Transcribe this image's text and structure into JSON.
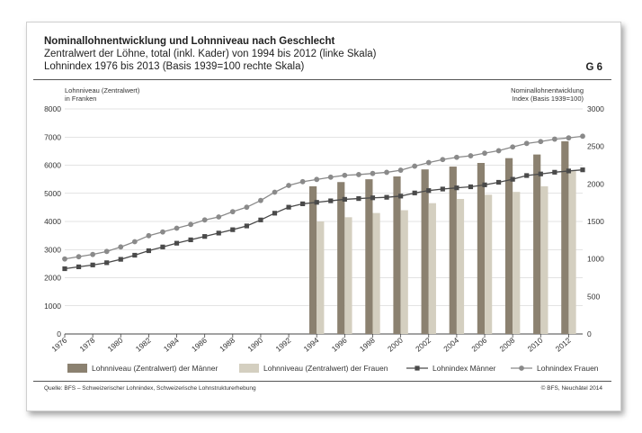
{
  "header": {
    "title": "Nominallohnentwicklung und Lohnniveau nach Geschlecht",
    "subtitle1": "Zentralwert der Löhne, total (inkl. Kader) von 1994 bis 2012 (linke Skala)",
    "subtitle2": "Lohnindex 1976 bis 2013 (Basis 1939=100 rechte Skala)",
    "code": "G 6"
  },
  "footer": {
    "source": "Quelle: BFS – Schweizerischer Lohnindex, Schweizerische Lohnstrukturerhebung",
    "copyright": "© BFS, Neuchâtel 2014"
  },
  "chart_data": {
    "type": "bar",
    "ylabel_left": "Lohnniveau (Zentralwert)",
    "ylabel_left2": "in Franken",
    "ylabel_right": "Nominallohnentwicklung",
    "ylabel_right2": "Index (Basis 1939=100)",
    "ylim_left": [
      0,
      8000
    ],
    "ylim_right": [
      0,
      3000
    ],
    "yticks_left": [
      "0",
      "1000",
      "2000",
      "3000",
      "4000",
      "5000",
      "6000",
      "7000",
      "8000"
    ],
    "yticks_right": [
      "0",
      "500",
      "1000",
      "1500",
      "2000",
      "2500",
      "3000"
    ],
    "x_range": [
      1976,
      2013
    ],
    "xticks": [
      "1976",
      "1978",
      "1980",
      "1982",
      "1984",
      "1986",
      "1988",
      "1990",
      "1992",
      "1994",
      "1996",
      "1998",
      "2000",
      "2002",
      "2004",
      "2006",
      "2008",
      "2010",
      "2012"
    ],
    "grid": true,
    "legend": "bottom",
    "bars": {
      "years": [
        1994,
        1996,
        1998,
        2000,
        2002,
        2004,
        2006,
        2008,
        2010,
        2012
      ],
      "series": [
        {
          "name": "Lohnniveau (Zentralwert) der Männer",
          "color": "#8b8170",
          "values": [
            5250,
            5400,
            5500,
            5600,
            5850,
            5950,
            6080,
            6250,
            6380,
            6850
          ]
        },
        {
          "name": "Lohnniveau (Zentralwert) der Frauen",
          "color": "#d4cfc0",
          "values": [
            4000,
            4150,
            4300,
            4400,
            4650,
            4800,
            4950,
            5050,
            5250,
            5800
          ]
        }
      ]
    },
    "lines": [
      {
        "name": "Lohnindex Männer",
        "color": "#4a4a4a",
        "marker": "square",
        "x": [
          1976,
          1977,
          1978,
          1979,
          1980,
          1981,
          1982,
          1983,
          1984,
          1985,
          1986,
          1987,
          1988,
          1989,
          1990,
          1991,
          1992,
          1993,
          1994,
          1995,
          1996,
          1997,
          1998,
          1999,
          2000,
          2001,
          2002,
          2003,
          2004,
          2005,
          2006,
          2007,
          2008,
          2009,
          2010,
          2011,
          2012,
          2013
        ],
        "values": [
          870,
          895,
          920,
          950,
          995,
          1050,
          1110,
          1160,
          1210,
          1255,
          1300,
          1345,
          1390,
          1440,
          1520,
          1610,
          1690,
          1735,
          1755,
          1775,
          1795,
          1805,
          1815,
          1822,
          1838,
          1880,
          1912,
          1932,
          1948,
          1962,
          1988,
          2022,
          2062,
          2112,
          2133,
          2156,
          2173,
          2188
        ]
      },
      {
        "name": "Lohnindex Frauen",
        "color": "#8a8a8a",
        "marker": "circle",
        "x": [
          1976,
          1977,
          1978,
          1979,
          1980,
          1981,
          1982,
          1983,
          1984,
          1985,
          1986,
          1987,
          1988,
          1989,
          1990,
          1991,
          1992,
          1993,
          1994,
          1995,
          1996,
          1997,
          1998,
          1999,
          2000,
          2001,
          2002,
          2003,
          2004,
          2005,
          2006,
          2007,
          2008,
          2009,
          2010,
          2011,
          2012,
          2013
        ],
        "values": [
          1000,
          1030,
          1060,
          1100,
          1160,
          1230,
          1310,
          1360,
          1410,
          1460,
          1520,
          1560,
          1630,
          1690,
          1780,
          1890,
          1980,
          2030,
          2060,
          2090,
          2115,
          2125,
          2140,
          2155,
          2183,
          2237,
          2285,
          2325,
          2355,
          2375,
          2410,
          2443,
          2493,
          2540,
          2565,
          2597,
          2614,
          2636
        ]
      }
    ]
  }
}
